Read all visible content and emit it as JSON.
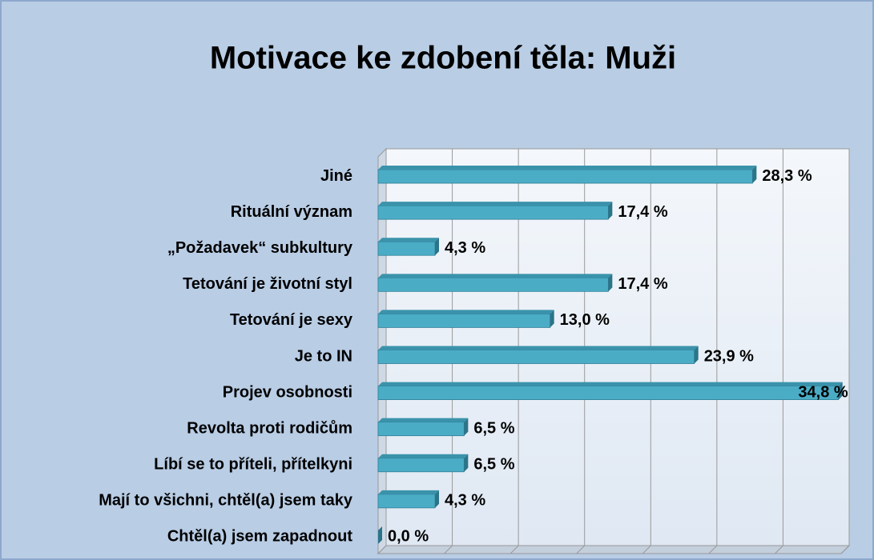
{
  "chart_data": {
    "type": "hbar",
    "title": "Motivace ke zdobení těla: Muži",
    "categories": [
      "Jiné",
      "Rituální význam",
      "„Požadavek“ subkultury",
      "Tetování je životní styl",
      "Tetování je sexy",
      "Je to IN",
      "Projev osobnosti",
      "Revolta proti rodičům",
      "Líbí se to příteli, přítelkyni",
      "Mají to všichni, chtěl(a) jsem taky",
      "Chtěl(a) jsem zapadnout"
    ],
    "values": [
      28.3,
      17.4,
      4.3,
      17.4,
      13.0,
      23.9,
      34.8,
      6.5,
      6.5,
      4.3,
      0.0
    ],
    "value_labels": [
      "28,3 %",
      "17,4 %",
      "4,3 %",
      "17,4 %",
      "13,0 %",
      "23,9 %",
      "34,8 %",
      "6,5 %",
      "6,5 %",
      "4,3 %",
      "0,0 %"
    ],
    "color": "#4bacc6",
    "xlim": [
      0,
      35
    ],
    "xticks": [
      0,
      5,
      10,
      15,
      20,
      25,
      30,
      35
    ],
    "grid": true
  }
}
